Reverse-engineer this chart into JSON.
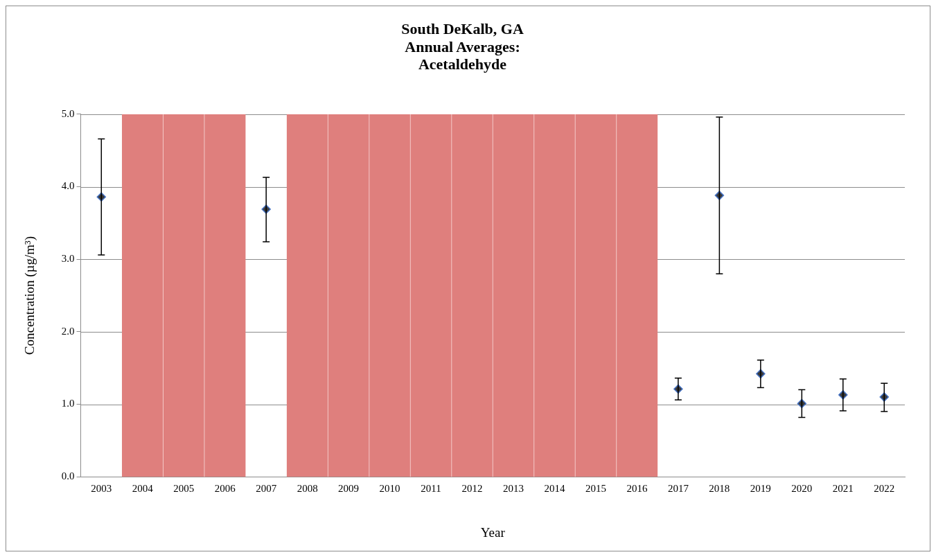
{
  "chart_data": {
    "type": "scatter",
    "title": "South DeKalb, GA\nAnnual Averages:\nAcetaldehyde",
    "xlabel": "Year",
    "ylabel": "Concentration (µg/m³)",
    "categories": [
      "2003",
      "2004",
      "2005",
      "2006",
      "2007",
      "2008",
      "2009",
      "2010",
      "2011",
      "2012",
      "2013",
      "2014",
      "2015",
      "2016",
      "2017",
      "2018",
      "2019",
      "2020",
      "2021",
      "2022"
    ],
    "series": [
      {
        "color": "#3a3a3a",
        "values": [
          3.86,
          null,
          null,
          null,
          3.69,
          null,
          null,
          null,
          null,
          null,
          null,
          null,
          null,
          null,
          1.21,
          3.88,
          1.42,
          1.01,
          1.13,
          1.1
        ],
        "errors": [
          [
            3.06,
            4.66
          ],
          null,
          null,
          null,
          [
            3.24,
            4.13
          ],
          null,
          null,
          null,
          null,
          null,
          null,
          null,
          null,
          null,
          [
            1.06,
            1.36
          ],
          [
            2.8,
            4.96
          ],
          [
            1.23,
            1.61
          ],
          [
            0.82,
            1.2
          ],
          [
            0.91,
            1.35
          ],
          [
            0.9,
            1.29
          ]
        ]
      }
    ],
    "ylim": [
      0,
      5
    ],
    "yticks": [
      {
        "value": 0,
        "label": "0.0"
      },
      {
        "value": 1,
        "label": "1.0"
      },
      {
        "value": 2,
        "label": "2.0"
      },
      {
        "value": 3,
        "label": "3.0"
      },
      {
        "value": 4,
        "label": "4.0"
      },
      {
        "value": 5,
        "label": "5.0"
      }
    ],
    "bands": [
      {
        "axis": "x",
        "from": "2004",
        "to": "2006",
        "color": "#df7f7d"
      },
      {
        "axis": "x",
        "from": "2008",
        "to": "2016",
        "color": "#df7f7d"
      }
    ],
    "grid": "y",
    "legend": false,
    "marker": "diamond"
  }
}
